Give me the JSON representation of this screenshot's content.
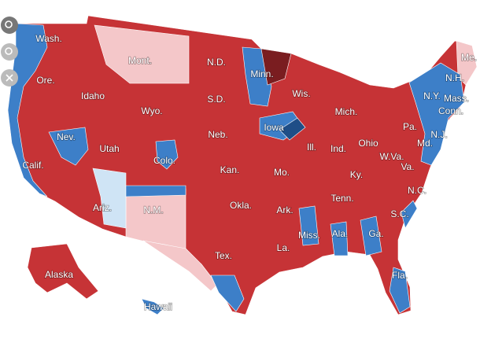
{
  "labels": [
    "Wash.",
    "Mont.",
    "N.D.",
    "Minn.",
    "Me.",
    "Ore.",
    "Idaho",
    "S.D.",
    "Wis.",
    "N.Y.",
    "N.H.",
    "Mass.",
    "Conn.",
    "Wyo.",
    "Mich.",
    "Iowa",
    "Nev.",
    "Neb.",
    "Pa.",
    "Ohio",
    "Ill.",
    "Ind.",
    "Utah",
    "N.J.",
    "Md.",
    "Calif.",
    "Colo.",
    "W.Va.",
    "Va.",
    "Kan.",
    "Mo.",
    "Ky.",
    "N.C.",
    "Tenn.",
    "Okla.",
    "Ark.",
    "N.M.",
    "Ariz.",
    "S.C.",
    "Miss.",
    "Ala.",
    "Ga.",
    "Tex.",
    "La.",
    "Alaska",
    "Fla.",
    "Hawaii"
  ]
}
